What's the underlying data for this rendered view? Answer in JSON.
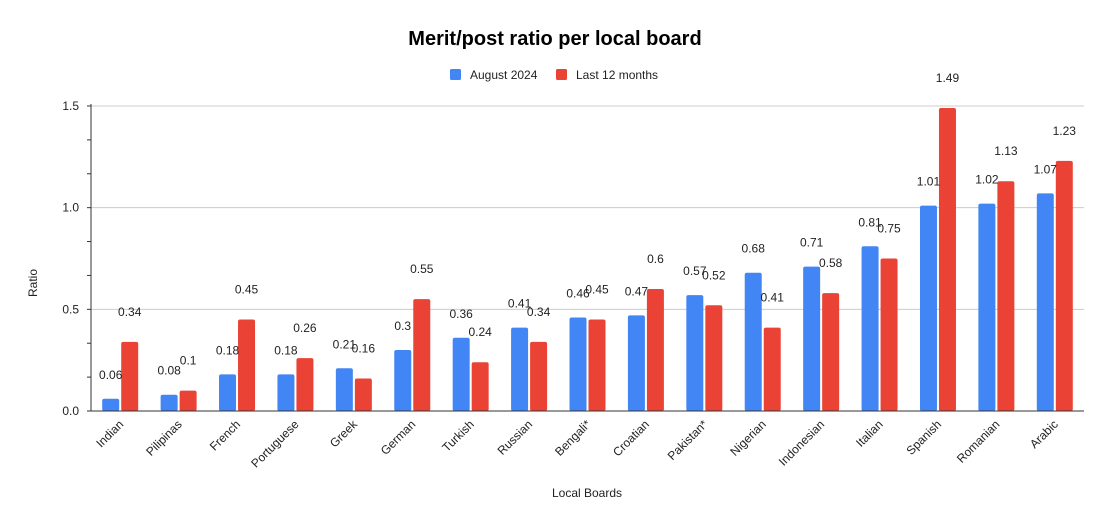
{
  "chart_data": {
    "type": "bar",
    "title": "Merit/post ratio per local board",
    "xlabel": "Local Boards",
    "ylabel": "Ratio",
    "ylim": [
      0,
      1.5
    ],
    "yticks": [
      "0.0",
      "0.5",
      "1.0",
      "1.5"
    ],
    "grid": true,
    "legend_position": "top",
    "categories": [
      "Indian",
      "Pilipinas",
      "French",
      "Portuguese",
      "Greek",
      "German",
      "Turkish",
      "Russian",
      "Bengali*",
      "Croatian",
      "Pakistan*",
      "Nigerian",
      "Indonesian",
      "Italian",
      "Spanish",
      "Romanian",
      "Arabic"
    ],
    "series": [
      {
        "name": "August 2024",
        "color": "#4285F4",
        "values": [
          0.06,
          0.08,
          0.18,
          0.18,
          0.21,
          0.3,
          0.36,
          0.41,
          0.46,
          0.47,
          0.57,
          0.68,
          0.71,
          0.81,
          1.01,
          1.02,
          1.07
        ],
        "labels": [
          "0.06",
          "0.08",
          "0.18",
          "0.18",
          "0.21",
          "0.3",
          "0.36",
          "0.41",
          "0.46",
          "0.47",
          "0.57",
          "0.68",
          "0.71",
          "0.81",
          "1.01",
          "1.02",
          "1.07"
        ]
      },
      {
        "name": "Last 12 months",
        "color": "#EA4335",
        "values": [
          0.34,
          0.1,
          0.45,
          0.26,
          0.16,
          0.55,
          0.24,
          0.34,
          0.45,
          0.6,
          0.52,
          0.41,
          0.58,
          0.75,
          1.49,
          1.13,
          1.23
        ],
        "labels": [
          "0.34",
          "0.1",
          "0.45",
          "0.26",
          "0.16",
          "0.55",
          "0.24",
          "0.34",
          "0.45",
          "0.6",
          "0.52",
          "0.41",
          "0.58",
          "0.75",
          "1.49",
          "1.13",
          "1.23"
        ]
      }
    ]
  }
}
